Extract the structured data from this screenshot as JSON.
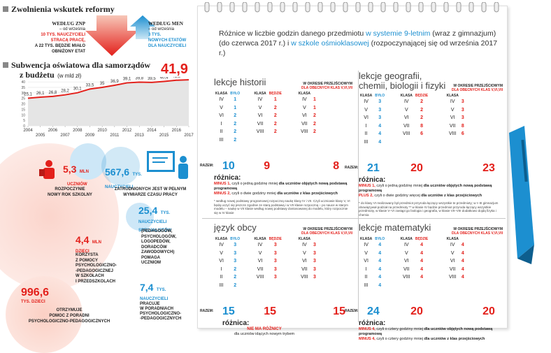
{
  "header": {
    "title": "Zwolnienia wskutek reformy"
  },
  "znp": {
    "label": "Według ZNP",
    "lines": [
      "– od września",
      "10 tys. nauczycieli",
      "stracą pracę,",
      "a 22 tys. będzie miało",
      "obniżony etat"
    ]
  },
  "men": {
    "label": "Według MEN",
    "lines": [
      "– od września",
      "3 tys.",
      "nowych etatów",
      "dla nauczycieli"
    ]
  },
  "subsidy": {
    "title": "Subwencja oświatowa dla samorządów",
    "title2": "z budżetu",
    "unit": "(w mld zł)",
    "highlight": "41,9"
  },
  "chart_data": {
    "type": "line",
    "x": [
      "2004",
      "2005",
      "2006",
      "2007",
      "2008",
      "2009",
      "2010",
      "2011",
      "2012",
      "2013",
      "2014",
      "2015",
      "2016",
      "2017"
    ],
    "values": [
      25.1,
      26.1,
      26.8,
      28.2,
      30.1,
      33.5,
      35.0,
      36.9,
      39.1,
      39.8,
      39.5,
      40.4,
      41.5,
      41.9
    ],
    "labels": [
      "25,1",
      "26,1",
      "26,8",
      "28,2",
      "30,1",
      "33,5",
      "35",
      "36,9",
      "39,1",
      "39,8",
      "39,5",
      "40,4",
      "41,5",
      "41,9"
    ],
    "yticks": [
      "40",
      "35",
      "30",
      "25",
      "20",
      "15",
      "10",
      "5",
      "0"
    ],
    "ylim": [
      0,
      42
    ],
    "xlabel": "",
    "ylabel": ""
  },
  "stats": {
    "pupils": {
      "num": "5,3",
      "unit": "mln",
      "unit2": "uczniów",
      "label": [
        "rozpoczynie",
        "nowy rok szkolny"
      ]
    },
    "teachers": {
      "num": "567,6",
      "unit": "tys.",
      "unit2": "nauczycieli",
      "label": [
        "zatrudnionych jest w pełnym",
        "wymiarze czasu pracy"
      ]
    },
    "specialists": {
      "num": "25,4",
      "unit": "tys.",
      "unit2": "nauczycieli",
      "unit3": "specjalistów",
      "label": [
        "(pedagogów,",
        "psychologów,",
        "logopedów,",
        "doradców",
        "zawodowych)",
        "pomaga",
        "uczniom"
      ]
    },
    "kids": {
      "num": "4,4",
      "unit": "mln",
      "unit2": "dzieci",
      "label": [
        "korzysta",
        "z pomocy",
        "psychologiczno-",
        "-pedagogicznej",
        "w szkołach",
        "i przedszkolach"
      ]
    },
    "poradnie": {
      "num": "7,4",
      "unit": "tys.",
      "unit2": "nauczycieli",
      "label": [
        "pracuje",
        "w poradniach",
        "psychologiczno-",
        "-pedagogicznych"
      ]
    },
    "children": {
      "num": "996,6",
      "unit": "tys. dzieci",
      "label": [
        "otrzymuje",
        "pomoc z poradni",
        "psychologiczno-pedagogicznych"
      ]
    }
  },
  "notebook": {
    "intro1": "Różnice w liczbie godzin danego przedmiotu ",
    "intro2": "w systemie 9-letnim",
    "intro3": " (wraz z gimnazjum) (do czerwca 2017 r.) i ",
    "intro4": "w szkole ośmioklasowej",
    "intro5": " (rozpoczynającej się od września 2017 r.)",
    "hdr": {
      "klasa": "klasa",
      "bylo": "było",
      "bedzie": "będzie",
      "okres": "w okresie przejściowym",
      "obecnych": "dla obecnych klas V,VI,VII",
      "razem": "razem:",
      "roznica": "różnica:"
    },
    "historia": {
      "title": "lekcje historii",
      "cls1": [
        "IV",
        "V",
        "VI",
        "I",
        "II",
        "III"
      ],
      "by": [
        "1",
        "1",
        "2",
        "2",
        "2",
        "2"
      ],
      "cls2": [
        "IV",
        "V",
        "VI",
        "VII",
        "VIII"
      ],
      "bd": [
        "1",
        "2",
        "2",
        "2",
        "2"
      ],
      "cls3": [
        "IV",
        "V",
        "VI",
        "VII",
        "VIII"
      ],
      "ok": [
        "1",
        "1",
        "2",
        "2",
        "2"
      ],
      "sums": [
        "10",
        "9",
        "8"
      ],
      "d1": "MINUS 1,",
      "d1t": " czyli o jedną godzinę mniej ",
      "d1b": "dla uczniów objętych nową podstawą programową",
      "d2": "MINUS 2,",
      "d2t": " czyli o dwie godziny mniej ",
      "d2b": "dla uczniów z klas przejściowych",
      "note": "* według nowej podstawy programowej rozpoczną naukę klasy IV i VII. Czyli uczniowie klasy V, VI będą uczyć się jeszcze zgodnie ze starą podstawą i w VII klasie rozpoczną – po nauce w starym modelu – naukę w VII klasie według nowej podstawy dostosowanej do modelu, który rozpocznie się w IV klasie"
    },
    "geo": {
      "title": "lekcje geografii, chemii, biologii i fizyki",
      "cls1": [
        "IV",
        "V",
        "VI",
        "I",
        "II",
        "III"
      ],
      "by": [
        "3",
        "3",
        "3",
        "4",
        "4",
        "4"
      ],
      "cls2": [
        "IV",
        "V",
        "VI",
        "VII",
        "VIII"
      ],
      "bd": [
        "2",
        "2",
        "2",
        "8",
        "6"
      ],
      "cls3": [
        "IV",
        "V",
        "VI",
        "VII",
        "VIII"
      ],
      "ok": [
        "3",
        "3",
        "3",
        "8",
        "6"
      ],
      "sums": [
        "21",
        "20",
        "23"
      ],
      "d1": "MINUS 1,",
      "d1t": " czyli o jedną godzinę mniej ",
      "d1b": "dla uczniów objętych nową podstawą programową",
      "d2": "PLUS 2,",
      "d2t": " czyli o dwie godziny więcej ",
      "d2b": "dla uczniów z klas przejściowych",
      "note": "* do klasy VI realizowany był przedmiot przyroda łączący wszystkie te przedmioty; w I–III gimnazjum obowiązywał podział na przedmioty ** w klasie IV będzie przedmiot przyroda łączący wszystkie przedmioty, w klasie V–VI zastąpi go biologia i geografia, w klasie VII–VIII dodatkowo dojdą fizyka i chemia"
    },
    "obcy": {
      "title": "język obcy",
      "cls1": [
        "IV",
        "V",
        "VI",
        "I",
        "II",
        "III"
      ],
      "by": [
        "3",
        "3",
        "3",
        "2",
        "2",
        "2"
      ],
      "cls2": [
        "IV",
        "V",
        "VI",
        "VII",
        "VIII"
      ],
      "bd": [
        "3",
        "3",
        "3",
        "3",
        "3"
      ],
      "cls3": [
        "IV",
        "V",
        "VI",
        "VII",
        "VIII"
      ],
      "ok": [
        "3",
        "3",
        "3",
        "3",
        "3"
      ],
      "sums": [
        "15",
        "15",
        "15"
      ],
      "d1": "nie ma różnicy",
      "d1pre": "różnica:",
      "d1b": "dla uczniów idących nowym trybem"
    },
    "mat": {
      "title": "lekcje matematyki",
      "cls1": [
        "IV",
        "V",
        "VI",
        "I",
        "II",
        "III"
      ],
      "by": [
        "4",
        "4",
        "4",
        "4",
        "4",
        "4"
      ],
      "cls2": [
        "IV",
        "V",
        "VI",
        "VII",
        "VIII"
      ],
      "bd": [
        "4",
        "4",
        "4",
        "4",
        "4"
      ],
      "cls3": [
        "IV",
        "V",
        "VI",
        "VII",
        "VIII"
      ],
      "ok": [
        "4",
        "4",
        "4",
        "4",
        "4"
      ],
      "sums": [
        "24",
        "20",
        "20"
      ],
      "d1": "MINUS 4,",
      "d1t": " czyli o cztery godziny mniej ",
      "d1b": "dla uczniów objętych nową podstawą programową",
      "d2": "MINUS 4,",
      "d2t": " czyli o cztery godziny mniej ",
      "d2b": "dla uczniów z klas przejściowych"
    }
  },
  "colors": {
    "red": "#e3201b",
    "blue": "#1c8fd0",
    "grey": "#888"
  }
}
